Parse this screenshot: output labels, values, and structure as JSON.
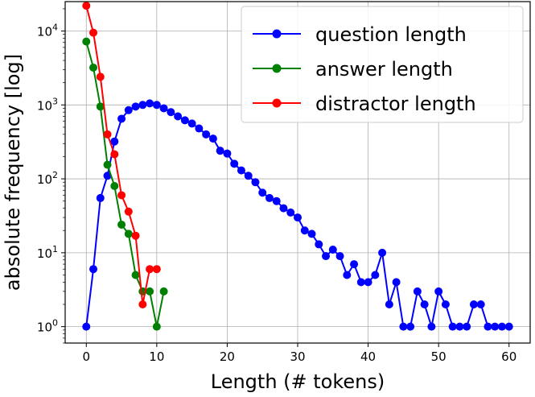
{
  "chart_data": {
    "type": "line",
    "xlabel": "Length (# tokens)",
    "ylabel": "absolute frequency [log]",
    "xlim": [
      -3,
      63
    ],
    "ylim": [
      0.6,
      25000
    ],
    "y_scale": "log",
    "grid": true,
    "legend_position": "top-right",
    "x_ticks": [
      0,
      10,
      20,
      30,
      40,
      50,
      60
    ],
    "x_tick_labels": [
      "0",
      "10",
      "20",
      "30",
      "40",
      "50",
      "60"
    ],
    "y_ticks": [
      1,
      10,
      100,
      1000,
      10000
    ],
    "y_tick_labels": [
      {
        "base": "10",
        "exp": "0"
      },
      {
        "base": "10",
        "exp": "1"
      },
      {
        "base": "10",
        "exp": "2"
      },
      {
        "base": "10",
        "exp": "3"
      },
      {
        "base": "10",
        "exp": "4"
      }
    ],
    "series": [
      {
        "name": "question length",
        "color": "#0000ff",
        "x": [
          0,
          1,
          2,
          3,
          4,
          5,
          6,
          7,
          8,
          9,
          10,
          11,
          12,
          13,
          14,
          15,
          16,
          17,
          18,
          19,
          20,
          21,
          22,
          23,
          24,
          25,
          26,
          27,
          28,
          29,
          30,
          31,
          32,
          33,
          34,
          35,
          36,
          37,
          38,
          39,
          40,
          41,
          42,
          43,
          44,
          45,
          46,
          47,
          48,
          49,
          50,
          51,
          52,
          53,
          54,
          55,
          56,
          57,
          58,
          59,
          60
        ],
        "values": [
          1,
          6,
          55,
          110,
          320,
          650,
          850,
          950,
          1000,
          1050,
          1000,
          900,
          800,
          700,
          620,
          560,
          480,
          400,
          350,
          240,
          220,
          160,
          130,
          110,
          90,
          65,
          55,
          50,
          40,
          35,
          30,
          20,
          18,
          13,
          9,
          11,
          9,
          5,
          7,
          4,
          4,
          5,
          10,
          2,
          4,
          1,
          1,
          3,
          2,
          1,
          3,
          2,
          1,
          1,
          1,
          2,
          2,
          1,
          1,
          1,
          1
        ]
      },
      {
        "name": "answer length",
        "color": "#008000",
        "x": [
          0,
          1,
          2,
          3,
          4,
          5,
          6,
          7,
          8,
          9,
          10,
          11
        ],
        "values": [
          7200,
          3200,
          950,
          155,
          80,
          24,
          18,
          5,
          3,
          3,
          1,
          3
        ]
      },
      {
        "name": "distractor length",
        "color": "#ff0000",
        "x": [
          0,
          1,
          2,
          3,
          4,
          5,
          6,
          7,
          8,
          9,
          10
        ],
        "values": [
          22000,
          9500,
          2400,
          400,
          215,
          60,
          36,
          17,
          2,
          6,
          6
        ]
      }
    ]
  }
}
